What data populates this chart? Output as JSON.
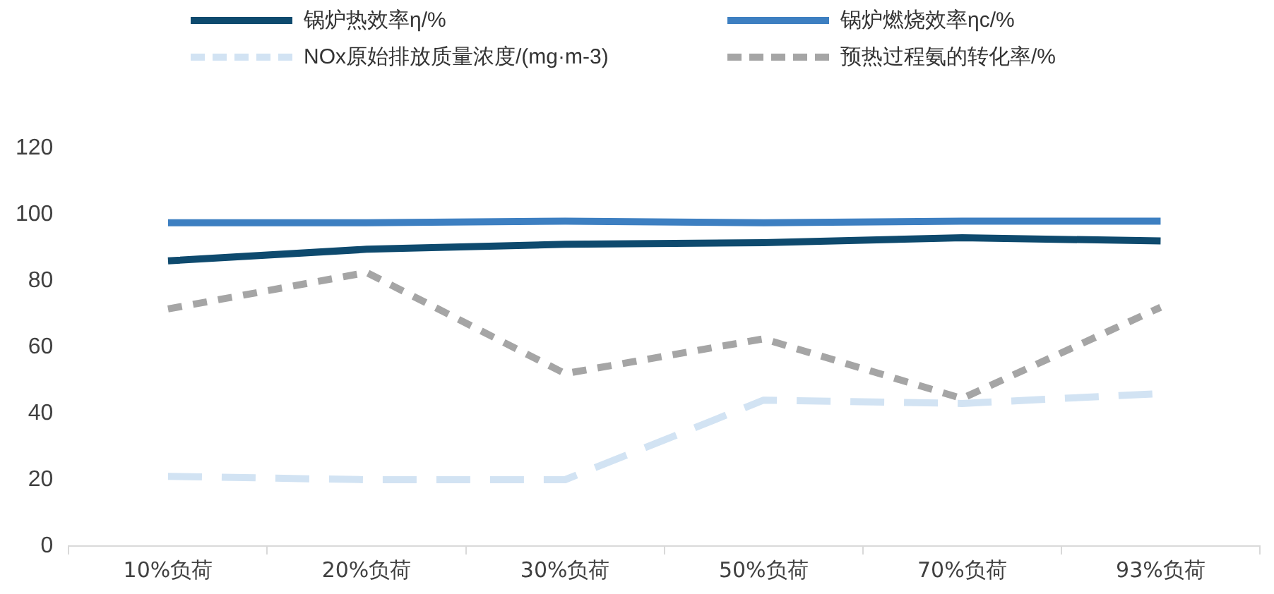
{
  "chart_data": {
    "type": "line",
    "categories": [
      "10%负荷",
      "20%负荷",
      "30%负荷",
      "50%负荷",
      "70%负荷",
      "93%负荷"
    ],
    "series": [
      {
        "name": "锅炉热效率η/%",
        "color": "#0e4a6e",
        "values": [
          86,
          89.5,
          91,
          91.5,
          93,
          92
        ],
        "line_style": "solid"
      },
      {
        "name": "锅炉燃烧效率ηc/%",
        "color": "#3d7fc1",
        "values": [
          97.5,
          97.5,
          98,
          97.5,
          98,
          98
        ],
        "line_style": "solid"
      },
      {
        "name": "NOx原始排放质量浓度/(mg·m-3)",
        "color": "#d2e3f3",
        "values": [
          21,
          20,
          20,
          44,
          43,
          46
        ],
        "line_style": "dashed"
      },
      {
        "name": "预热过程氨的转化率/%",
        "color": "#a5a5a5",
        "values": [
          71.5,
          82.5,
          52,
          62.5,
          44.5,
          72
        ],
        "line_style": "dotted"
      }
    ],
    "ylim": [
      0,
      120
    ],
    "yticks": [
      0,
      20,
      40,
      60,
      80,
      100,
      120
    ],
    "grid": false,
    "legend": "top",
    "marker": "none"
  }
}
